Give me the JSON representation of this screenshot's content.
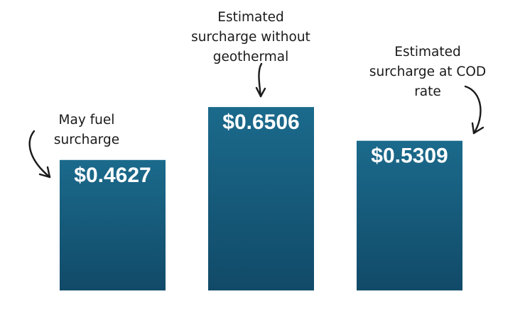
{
  "chart_data": {
    "type": "bar",
    "categories": [
      "May fuel surcharge",
      "Estimated surcharge without geothermal",
      "Estimated surcharge at COD rate"
    ],
    "values": [
      0.4627,
      0.6506,
      0.5309
    ],
    "value_labels": [
      "$0.4627",
      "$0.6506",
      "$0.5309"
    ],
    "annotations": [
      [
        "May fuel",
        "surcharge"
      ],
      [
        "Estimated",
        "surcharge without",
        "geothermal"
      ],
      [
        "Estimated",
        "surcharge at COD",
        "rate"
      ]
    ],
    "title": "",
    "xlabel": "",
    "ylabel": "",
    "grid": false,
    "legend": "none",
    "bar_color_top": "#1b6a8c",
    "bar_color_bottom": "#114a68"
  }
}
